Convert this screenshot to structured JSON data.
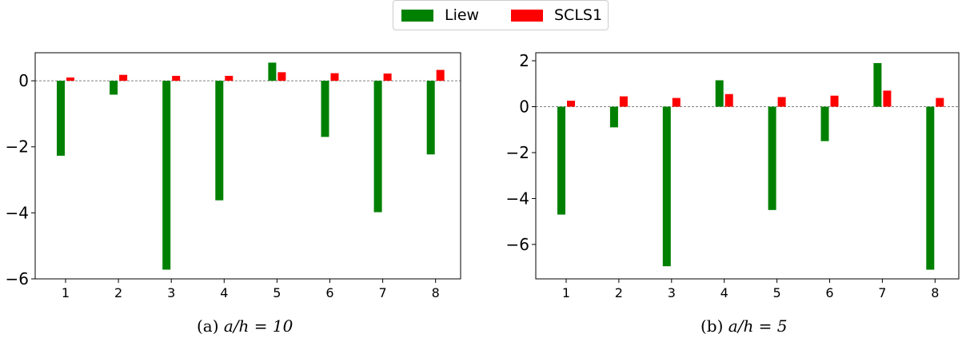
{
  "legend": [
    {
      "name": "Liew",
      "color": "#008000"
    },
    {
      "name": "SCLS1",
      "color": "#ff0000"
    }
  ],
  "chart_data": [
    {
      "type": "bar",
      "caption_prefix": "(a)",
      "caption_math": "a/h = 10",
      "categories": [
        "1",
        "2",
        "3",
        "4",
        "5",
        "6",
        "7",
        "8"
      ],
      "ylim": [
        -6,
        0.85
      ],
      "yticks": [
        -6,
        -4,
        -2,
        0
      ],
      "ytick_labels": [
        "−6",
        "−4",
        "−2",
        "0"
      ],
      "zero_line": true,
      "series": [
        {
          "name": "Liew",
          "color": "#008000",
          "values": [
            -2.27,
            -0.42,
            -5.72,
            -3.62,
            0.55,
            -1.7,
            -3.98,
            -2.23
          ]
        },
        {
          "name": "SCLS1",
          "color": "#ff0000",
          "values": [
            0.1,
            0.18,
            0.15,
            0.15,
            0.26,
            0.23,
            0.22,
            0.33
          ]
        }
      ]
    },
    {
      "type": "bar",
      "caption_prefix": "(b)",
      "caption_math": "a/h = 5",
      "categories": [
        "1",
        "2",
        "3",
        "4",
        "5",
        "6",
        "7",
        "8"
      ],
      "ylim": [
        -7.5,
        2.35
      ],
      "yticks": [
        -6,
        -4,
        -2,
        0,
        2
      ],
      "ytick_labels": [
        "−6",
        "−4",
        "−2",
        "0",
        "2"
      ],
      "zero_line": true,
      "series": [
        {
          "name": "Liew",
          "color": "#008000",
          "values": [
            -4.7,
            -0.9,
            -6.95,
            1.15,
            -4.5,
            -1.5,
            1.9,
            -7.1
          ]
        },
        {
          "name": "SCLS1",
          "color": "#ff0000",
          "values": [
            0.26,
            0.45,
            0.38,
            0.55,
            0.42,
            0.48,
            0.7,
            0.38
          ]
        }
      ]
    }
  ]
}
